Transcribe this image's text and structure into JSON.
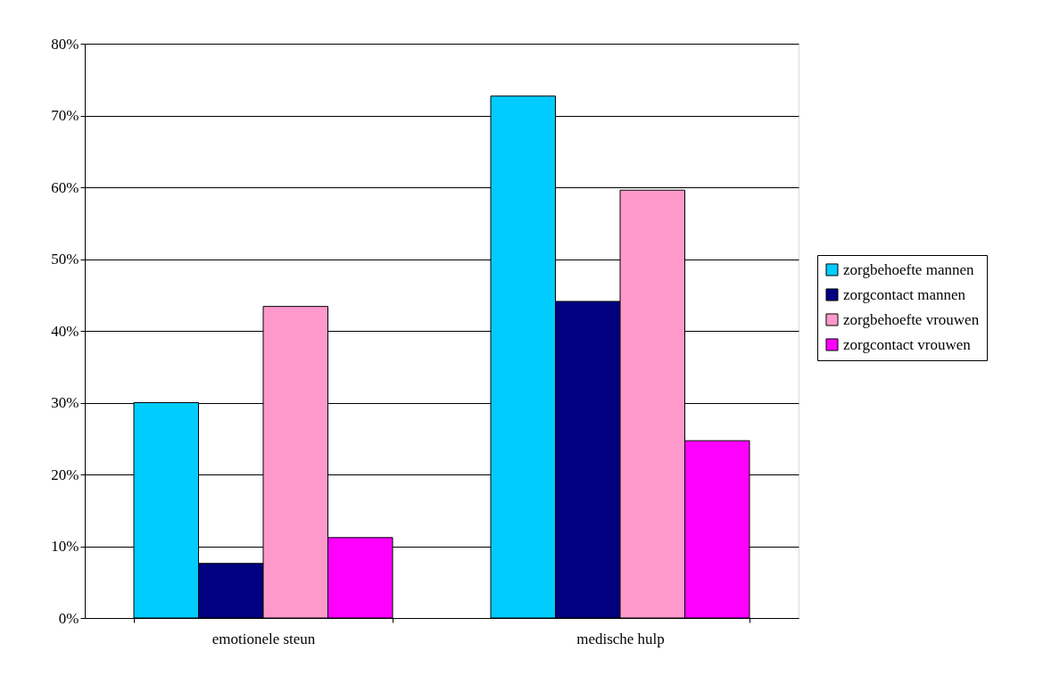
{
  "chart_data": {
    "type": "bar",
    "categories": [
      "emotionele steun",
      "medische hulp"
    ],
    "series": [
      {
        "name": "zorgbehoefte mannen",
        "color": "#00ccff",
        "values": [
          30.0,
          72.7
        ]
      },
      {
        "name": "zorgcontact mannen",
        "color": "#000080",
        "values": [
          7.6,
          44.1
        ]
      },
      {
        "name": "zorgbehoefte vrouwen",
        "color": "#ff99cc",
        "values": [
          43.4,
          59.6
        ]
      },
      {
        "name": "zorgcontact vrouwen",
        "color": "#ff00ff",
        "values": [
          11.2,
          24.7
        ]
      }
    ],
    "ylim": [
      0,
      80
    ],
    "yticks": [
      {
        "value": 0,
        "label": "0%"
      },
      {
        "value": 10,
        "label": "10%"
      },
      {
        "value": 20,
        "label": "20%"
      },
      {
        "value": 30,
        "label": "30%"
      },
      {
        "value": 40,
        "label": "40%"
      },
      {
        "value": 50,
        "label": "50%"
      },
      {
        "value": 60,
        "label": "60%"
      },
      {
        "value": 70,
        "label": "70%"
      },
      {
        "value": 80,
        "label": "80%"
      }
    ],
    "grid": "y",
    "legend": "right"
  }
}
